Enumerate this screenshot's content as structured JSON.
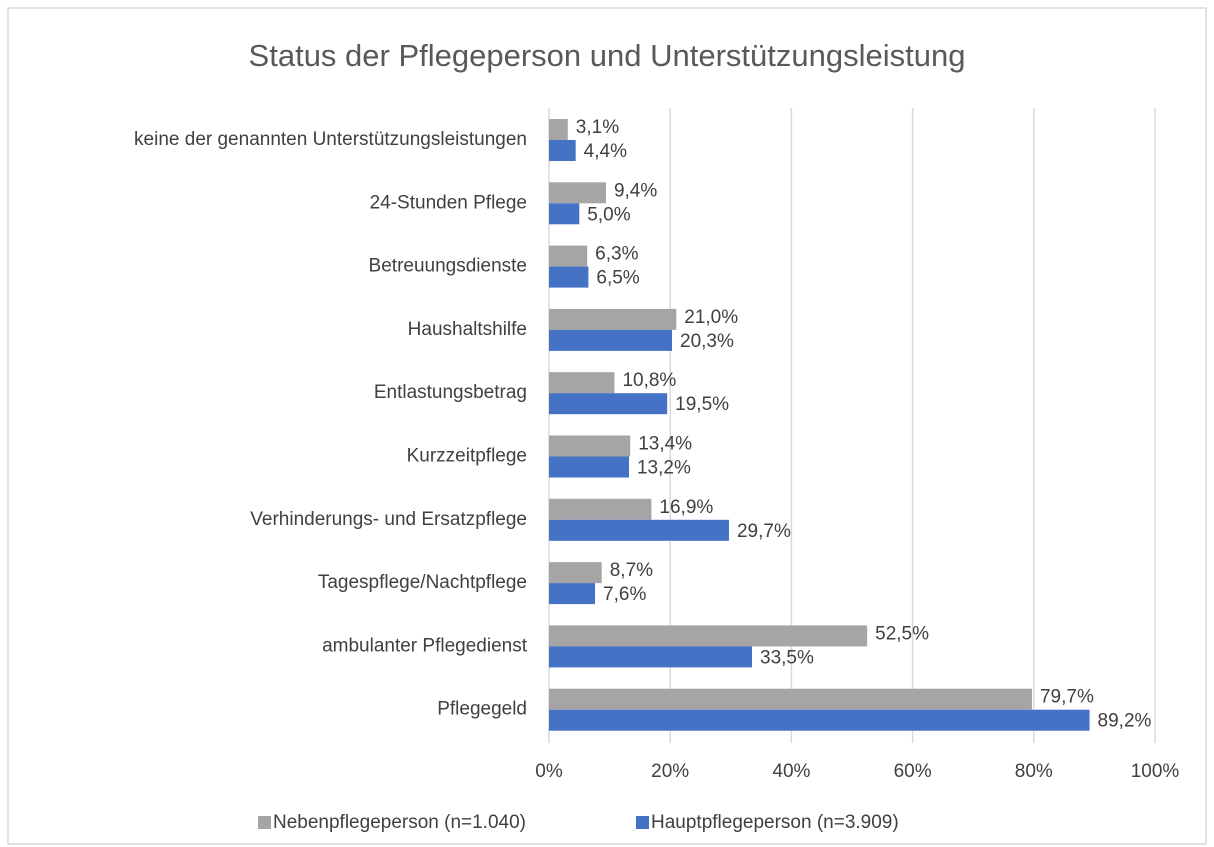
{
  "chart_data": {
    "type": "hbar",
    "title": "Status der Pflegeperson und Unterstützungsleistung",
    "categories": [
      "keine der genannten Unterstützungsleistungen",
      "24-Stunden Pflege",
      "Betreuungsdienste",
      "Haushaltshilfe",
      "Entlastungsbetrag",
      "Kurzzeitpflege",
      "Verhinderungs- und Ersatzpflege",
      "Tagespflege/Nachtpflege",
      "ambulanter Pflegedienst",
      "Pflegegeld"
    ],
    "series": [
      {
        "name": "Nebenpflegeperson (n=1.040)",
        "color": "#a5a5a5",
        "values": [
          3.1,
          9.4,
          6.3,
          21.0,
          10.8,
          13.4,
          16.9,
          8.7,
          52.5,
          79.7
        ],
        "value_labels": [
          "3,1%",
          "9,4%",
          "6,3%",
          "21,0%",
          "10,8%",
          "13,4%",
          "16,9%",
          "8,7%",
          "52,5%",
          "79,7%"
        ]
      },
      {
        "name": "Hauptpflegeperson (n=3.909)",
        "color": "#4472c4",
        "values": [
          4.4,
          5.0,
          6.5,
          20.3,
          19.5,
          13.2,
          29.7,
          7.6,
          33.5,
          89.2
        ],
        "value_labels": [
          "4,4%",
          "5,0%",
          "6,5%",
          "20,3%",
          "19,5%",
          "13,2%",
          "29,7%",
          "7,6%",
          "33,5%",
          "89,2%"
        ]
      }
    ],
    "xlim": [
      0,
      100
    ],
    "xticks": [
      {
        "value": 0,
        "label": "0%"
      },
      {
        "value": 20,
        "label": "20%"
      },
      {
        "value": 40,
        "label": "40%"
      },
      {
        "value": 60,
        "label": "60%"
      },
      {
        "value": 80,
        "label": "80%"
      },
      {
        "value": 100,
        "label": "100%"
      }
    ],
    "grid": true,
    "legend": "bottom"
  }
}
